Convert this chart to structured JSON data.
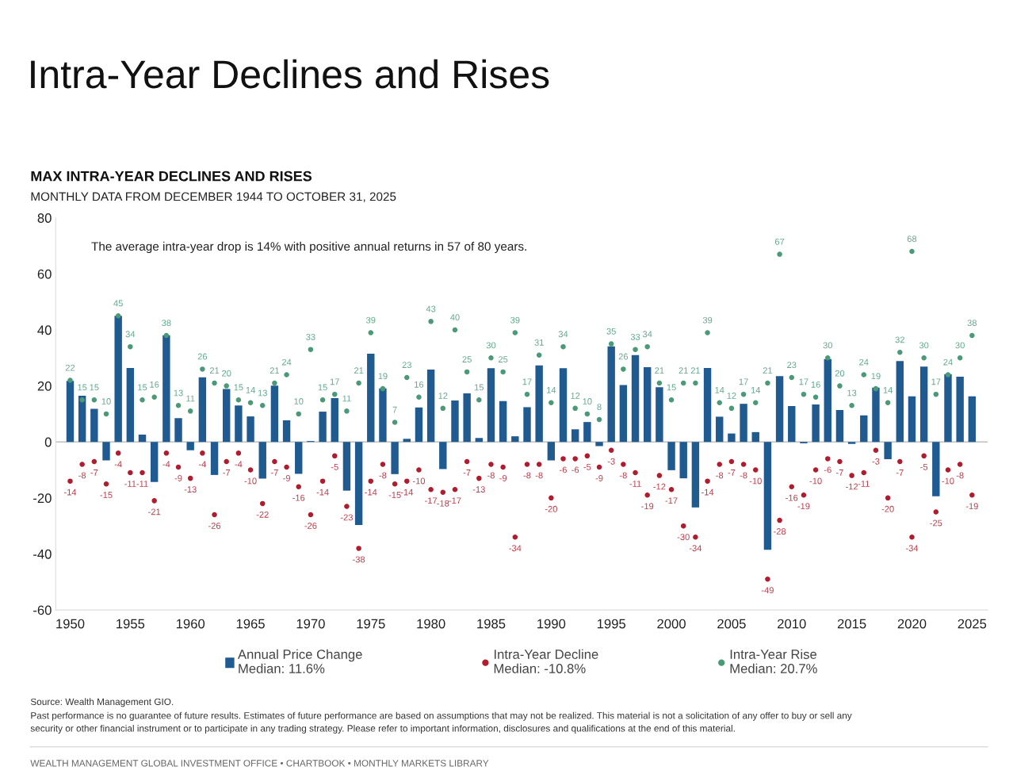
{
  "chart_data": {
    "type": "bar",
    "title": "Intra-Year Declines and Rises",
    "subtitle": "MAX INTRA-YEAR DECLINES AND RISES",
    "annotations": [
      "MONTHLY DATA FROM DECEMBER 1944 TO OCTOBER 31, 2025",
      "The average intra-year drop is 14% with positive annual returns in 57 of 80 years.",
      "Source: Wealth Management GIO.",
      "Past performance is no guarantee of future results. Estimates of future performance are based on assumptions that may not be realized. This material is not a solicitation of any offer to buy or sell any\nsecurity or other financial instrument or to participate in any trading strategy. Please refer to important information, disclosures and qualifications at the end of this material.",
      "WEALTH MANAGEMENT GLOBAL INVESTMENT OFFICE • CHARTBOOK • MONTHLY MARKETS LIBRARY"
    ],
    "x": [
      1950,
      1951,
      1952,
      1953,
      1954,
      1955,
      1956,
      1957,
      1958,
      1959,
      1960,
      1961,
      1962,
      1963,
      1964,
      1965,
      1966,
      1967,
      1968,
      1969,
      1970,
      1971,
      1972,
      1973,
      1974,
      1975,
      1976,
      1977,
      1978,
      1979,
      1980,
      1981,
      1982,
      1983,
      1984,
      1985,
      1986,
      1987,
      1988,
      1989,
      1990,
      1991,
      1992,
      1993,
      1994,
      1995,
      1996,
      1997,
      1998,
      1999,
      2000,
      2001,
      2002,
      2003,
      2004,
      2005,
      2006,
      2007,
      2008,
      2009,
      2010,
      2011,
      2012,
      2013,
      2014,
      2015,
      2016,
      2017,
      2018,
      2019,
      2020,
      2021,
      2022,
      2023,
      2024,
      2025
    ],
    "series": [
      {
        "name": "Annual Price Change\nMedian: 11.6%",
        "color": "#1f5a91",
        "values": [
          21.8,
          16.5,
          11.8,
          -6.6,
          45.0,
          26.4,
          2.6,
          -14.3,
          38.1,
          8.5,
          -3.0,
          23.1,
          -11.8,
          18.9,
          13.0,
          9.1,
          -13.1,
          20.1,
          7.7,
          -11.4,
          0.3,
          10.8,
          15.6,
          -17.4,
          -29.7,
          31.5,
          19.1,
          -11.5,
          1.1,
          12.3,
          25.8,
          -9.7,
          14.8,
          17.3,
          1.4,
          26.3,
          14.6,
          2.0,
          12.4,
          27.3,
          -6.6,
          26.3,
          4.5,
          7.1,
          -1.5,
          34.1,
          20.3,
          31.0,
          26.7,
          19.5,
          -10.1,
          -13.0,
          -23.4,
          26.4,
          9.0,
          3.0,
          13.6,
          3.5,
          -38.5,
          23.5,
          12.8,
          -0.5,
          13.4,
          29.6,
          11.4,
          -0.7,
          9.5,
          19.4,
          -6.2,
          28.9,
          16.3,
          26.9,
          -19.4,
          24.2,
          23.3,
          16.3
        ]
      },
      {
        "name": "Intra-Year Decline\nMedian: -10.8%",
        "type": "scatter",
        "color": "#b01c2e",
        "data_labels": true,
        "values": [
          -14,
          -8,
          -7,
          -15,
          -4,
          -11,
          -11,
          -21,
          -4,
          -9,
          -13,
          -4,
          -26,
          -7,
          -4,
          -10,
          -22,
          -7,
          -9,
          -16,
          -26,
          -14,
          -5,
          -23,
          -38,
          -14,
          -8,
          -15,
          -14,
          -10,
          -17,
          -18,
          -17,
          -7,
          -13,
          -8,
          -9,
          -34,
          -8,
          -8,
          -20,
          -6,
          -6,
          -5,
          -9,
          -3,
          -8,
          -11,
          -19,
          -12,
          -17,
          -30,
          -34,
          -14,
          -8,
          -7,
          -8,
          -10,
          -49,
          -28,
          -16,
          -19,
          -10,
          -6,
          -7,
          -12,
          -11,
          -3,
          -20,
          -7,
          -34,
          -5,
          -25,
          -10,
          -8,
          -19
        ]
      },
      {
        "name": "Intra-Year Rise\nMedian: 20.7%",
        "type": "scatter",
        "color": "#4a9a78",
        "data_labels": true,
        "values": [
          22,
          15,
          15,
          10,
          45,
          34,
          15,
          16,
          38,
          13,
          11,
          26,
          21,
          20,
          15,
          14,
          13,
          21,
          24,
          10,
          33,
          15,
          17,
          11,
          21,
          39,
          19,
          7,
          23,
          16,
          43,
          12,
          40,
          25,
          15,
          30,
          25,
          39,
          17,
          31,
          14,
          34,
          12,
          10,
          8,
          35,
          26,
          33,
          34,
          21,
          15,
          21,
          21,
          39,
          14,
          12,
          17,
          14,
          21,
          67,
          23,
          17,
          16,
          30,
          20,
          13,
          24,
          19,
          14,
          32,
          68,
          30,
          17,
          24,
          30,
          38
        ]
      }
    ],
    "xlim": [
      1948.8,
      2026.3
    ],
    "xticks": [
      1950,
      1955,
      1960,
      1965,
      1970,
      1975,
      1980,
      1985,
      1990,
      1995,
      2000,
      2005,
      2010,
      2015,
      2020,
      2025
    ],
    "ylim": [
      -60,
      80
    ],
    "yticks": [
      -60,
      -40,
      -20,
      0,
      20,
      40,
      60,
      80
    ],
    "ref_lines": [
      {
        "axis": "y",
        "value": 0,
        "color": "#bfbfbf"
      }
    ],
    "legend": "bottom",
    "marker": "circle"
  }
}
